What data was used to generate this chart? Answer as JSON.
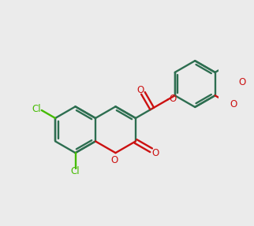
{
  "bg_color": "#ebebeb",
  "bond_color": "#2d6e50",
  "oxygen_color": "#cc1111",
  "chlorine_color": "#44bb00",
  "line_width": 1.7,
  "font_size": 8.5,
  "xlim": [
    0,
    10
  ],
  "ylim": [
    0,
    10
  ]
}
